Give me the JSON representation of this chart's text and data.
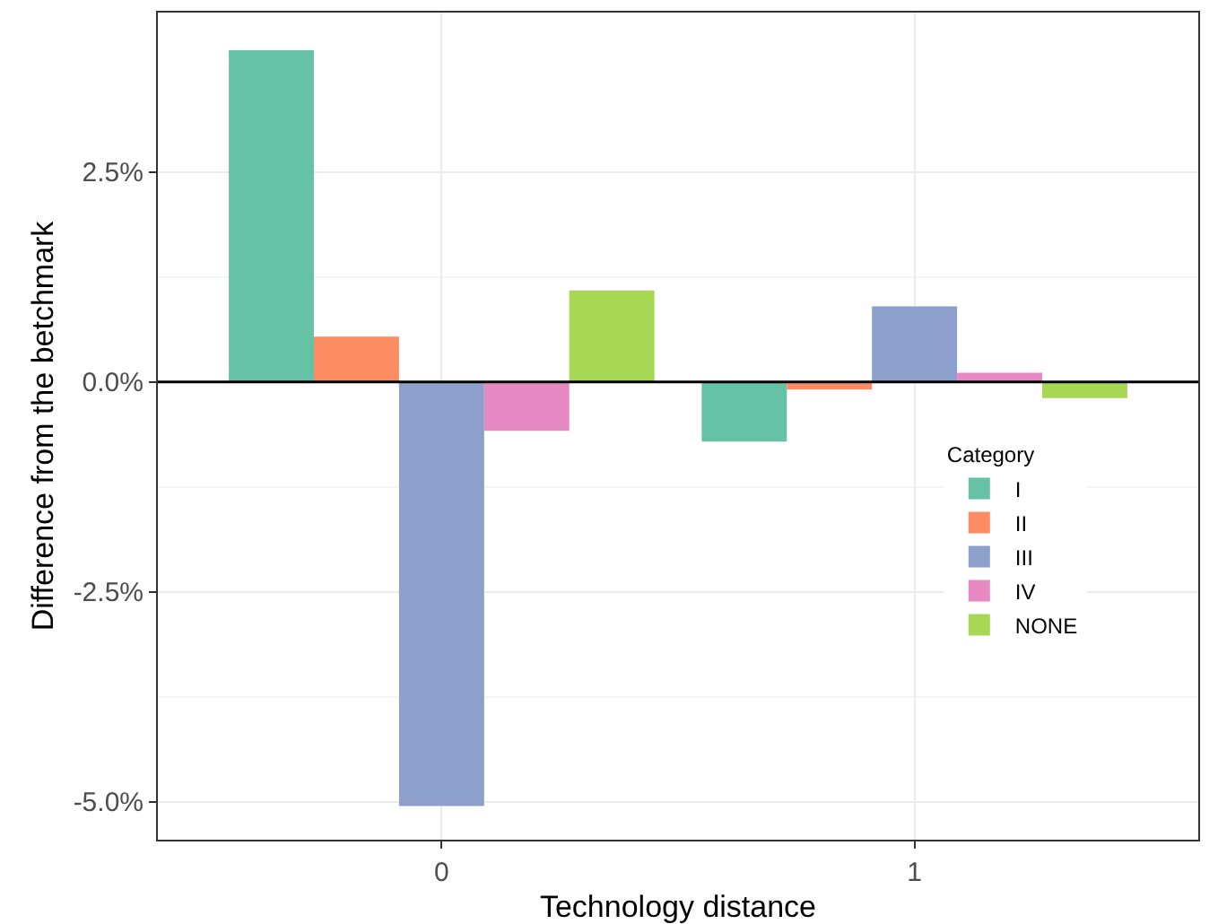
{
  "chart_data": {
    "type": "bar",
    "xlabel": "Technology distance",
    "ylabel": "Difference from the betchmark",
    "legend_title": "Category",
    "categories": [
      "0",
      "1"
    ],
    "series": [
      {
        "name": "I",
        "color": "#66c2a5",
        "values": [
          3.95,
          -0.71
        ]
      },
      {
        "name": "II",
        "color": "#fc8d62",
        "values": [
          0.54,
          -0.09
        ]
      },
      {
        "name": "III",
        "color": "#8da0cb",
        "values": [
          -5.05,
          0.9
        ]
      },
      {
        "name": "IV",
        "color": "#e78ac3",
        "values": [
          -0.58,
          0.11
        ]
      },
      {
        "name": "NONE",
        "color": "#a6d854",
        "values": [
          1.09,
          -0.19
        ]
      }
    ],
    "ylim": [
      -5.45,
      4.4
    ],
    "yticks": [
      {
        "value": -5,
        "label": "-5.0%"
      },
      {
        "value": -2.5,
        "label": "-2.5%"
      },
      {
        "value": 0,
        "label": "0.0%"
      },
      {
        "value": 2.5,
        "label": "2.5%"
      }
    ],
    "ref_lines": [
      {
        "axis": "y",
        "value": 0,
        "color": "#000000"
      }
    ],
    "grid": true,
    "legend": "bottom right"
  }
}
